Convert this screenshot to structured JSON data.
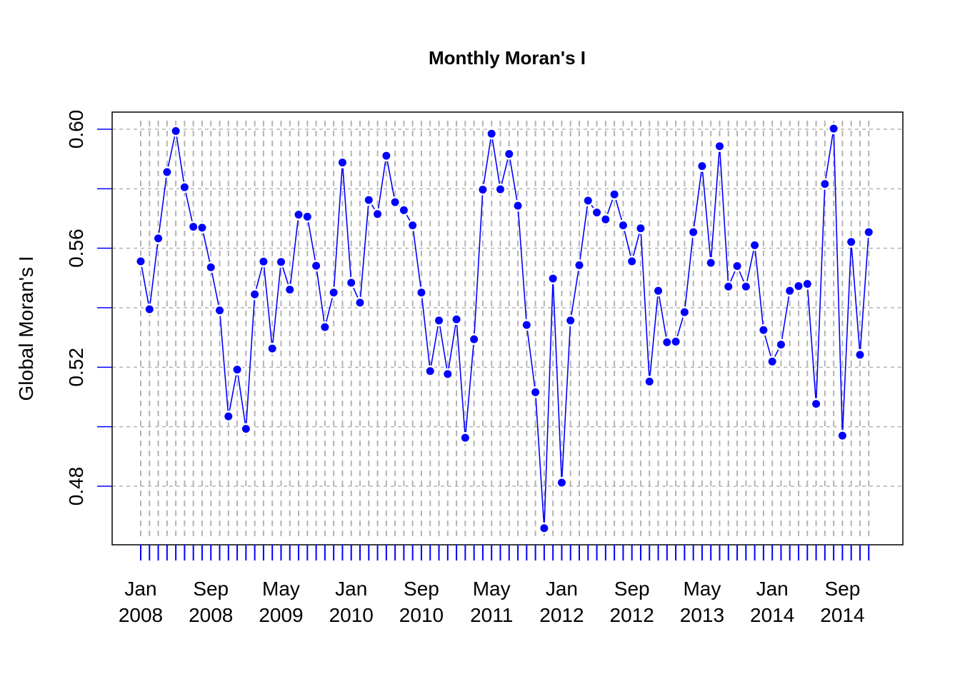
{
  "chart_data": {
    "type": "line",
    "title": "Monthly Moran's I",
    "xlabel": "",
    "ylabel": "Global Moran's I",
    "x_start": "2008-01",
    "x_end": "2014-11",
    "x_ticks": [
      {
        "month": "Jan",
        "year": "2008",
        "date": "2008-01"
      },
      {
        "month": "Sep",
        "year": "2008",
        "date": "2008-09"
      },
      {
        "month": "May",
        "year": "2009",
        "date": "2009-05"
      },
      {
        "month": "Jan",
        "year": "2010",
        "date": "2010-01"
      },
      {
        "month": "Sep",
        "year": "2010",
        "date": "2010-09"
      },
      {
        "month": "May",
        "year": "2011",
        "date": "2011-05"
      },
      {
        "month": "Jan",
        "year": "2012",
        "date": "2012-01"
      },
      {
        "month": "Sep",
        "year": "2012",
        "date": "2012-09"
      },
      {
        "month": "May",
        "year": "2013",
        "date": "2013-05"
      },
      {
        "month": "Jan",
        "year": "2014",
        "date": "2014-01"
      },
      {
        "month": "Sep",
        "year": "2014",
        "date": "2014-09"
      }
    ],
    "y_ticks": [
      "0.48",
      "0.52",
      "0.56",
      "0.60"
    ],
    "ylim": [
      0.462,
      0.606
    ],
    "grid": true,
    "legend": "none",
    "colors": {
      "series": "#0000ff",
      "grid": "#b3b3b3",
      "axis": "#000000"
    },
    "series": [
      {
        "values": [
          0.5556,
          0.5395,
          0.5633,
          0.5856,
          0.5994,
          0.5805,
          0.5672,
          0.5669,
          0.5536,
          0.5391,
          0.5035,
          0.5192,
          0.4993,
          0.5445,
          0.5555,
          0.5263,
          0.5554,
          0.5461,
          0.5713,
          0.5706,
          0.5541,
          0.5335,
          0.5451,
          0.5888,
          0.5484,
          0.5417,
          0.5762,
          0.5715,
          0.5911,
          0.5755,
          0.5728,
          0.5677,
          0.5451,
          0.5187,
          0.5357,
          0.5177,
          0.5361,
          0.4963,
          0.5294,
          0.5797,
          0.5985,
          0.5798,
          0.5917,
          0.5743,
          0.5342,
          0.5116,
          0.4659,
          0.5498,
          0.4812,
          0.5357,
          0.5543,
          0.576,
          0.572,
          0.5697,
          0.5781,
          0.5677,
          0.5556,
          0.5667,
          0.5152,
          0.5457,
          0.5284,
          0.5286,
          0.5385,
          0.5654,
          0.5876,
          0.5551,
          0.5943,
          0.5471,
          0.554,
          0.5471,
          0.561,
          0.5325,
          0.5219,
          0.5276,
          0.5457,
          0.5473,
          0.548,
          0.5077,
          0.5816,
          0.6002,
          0.497,
          0.5621,
          0.5242,
          0.5654
        ]
      }
    ]
  }
}
